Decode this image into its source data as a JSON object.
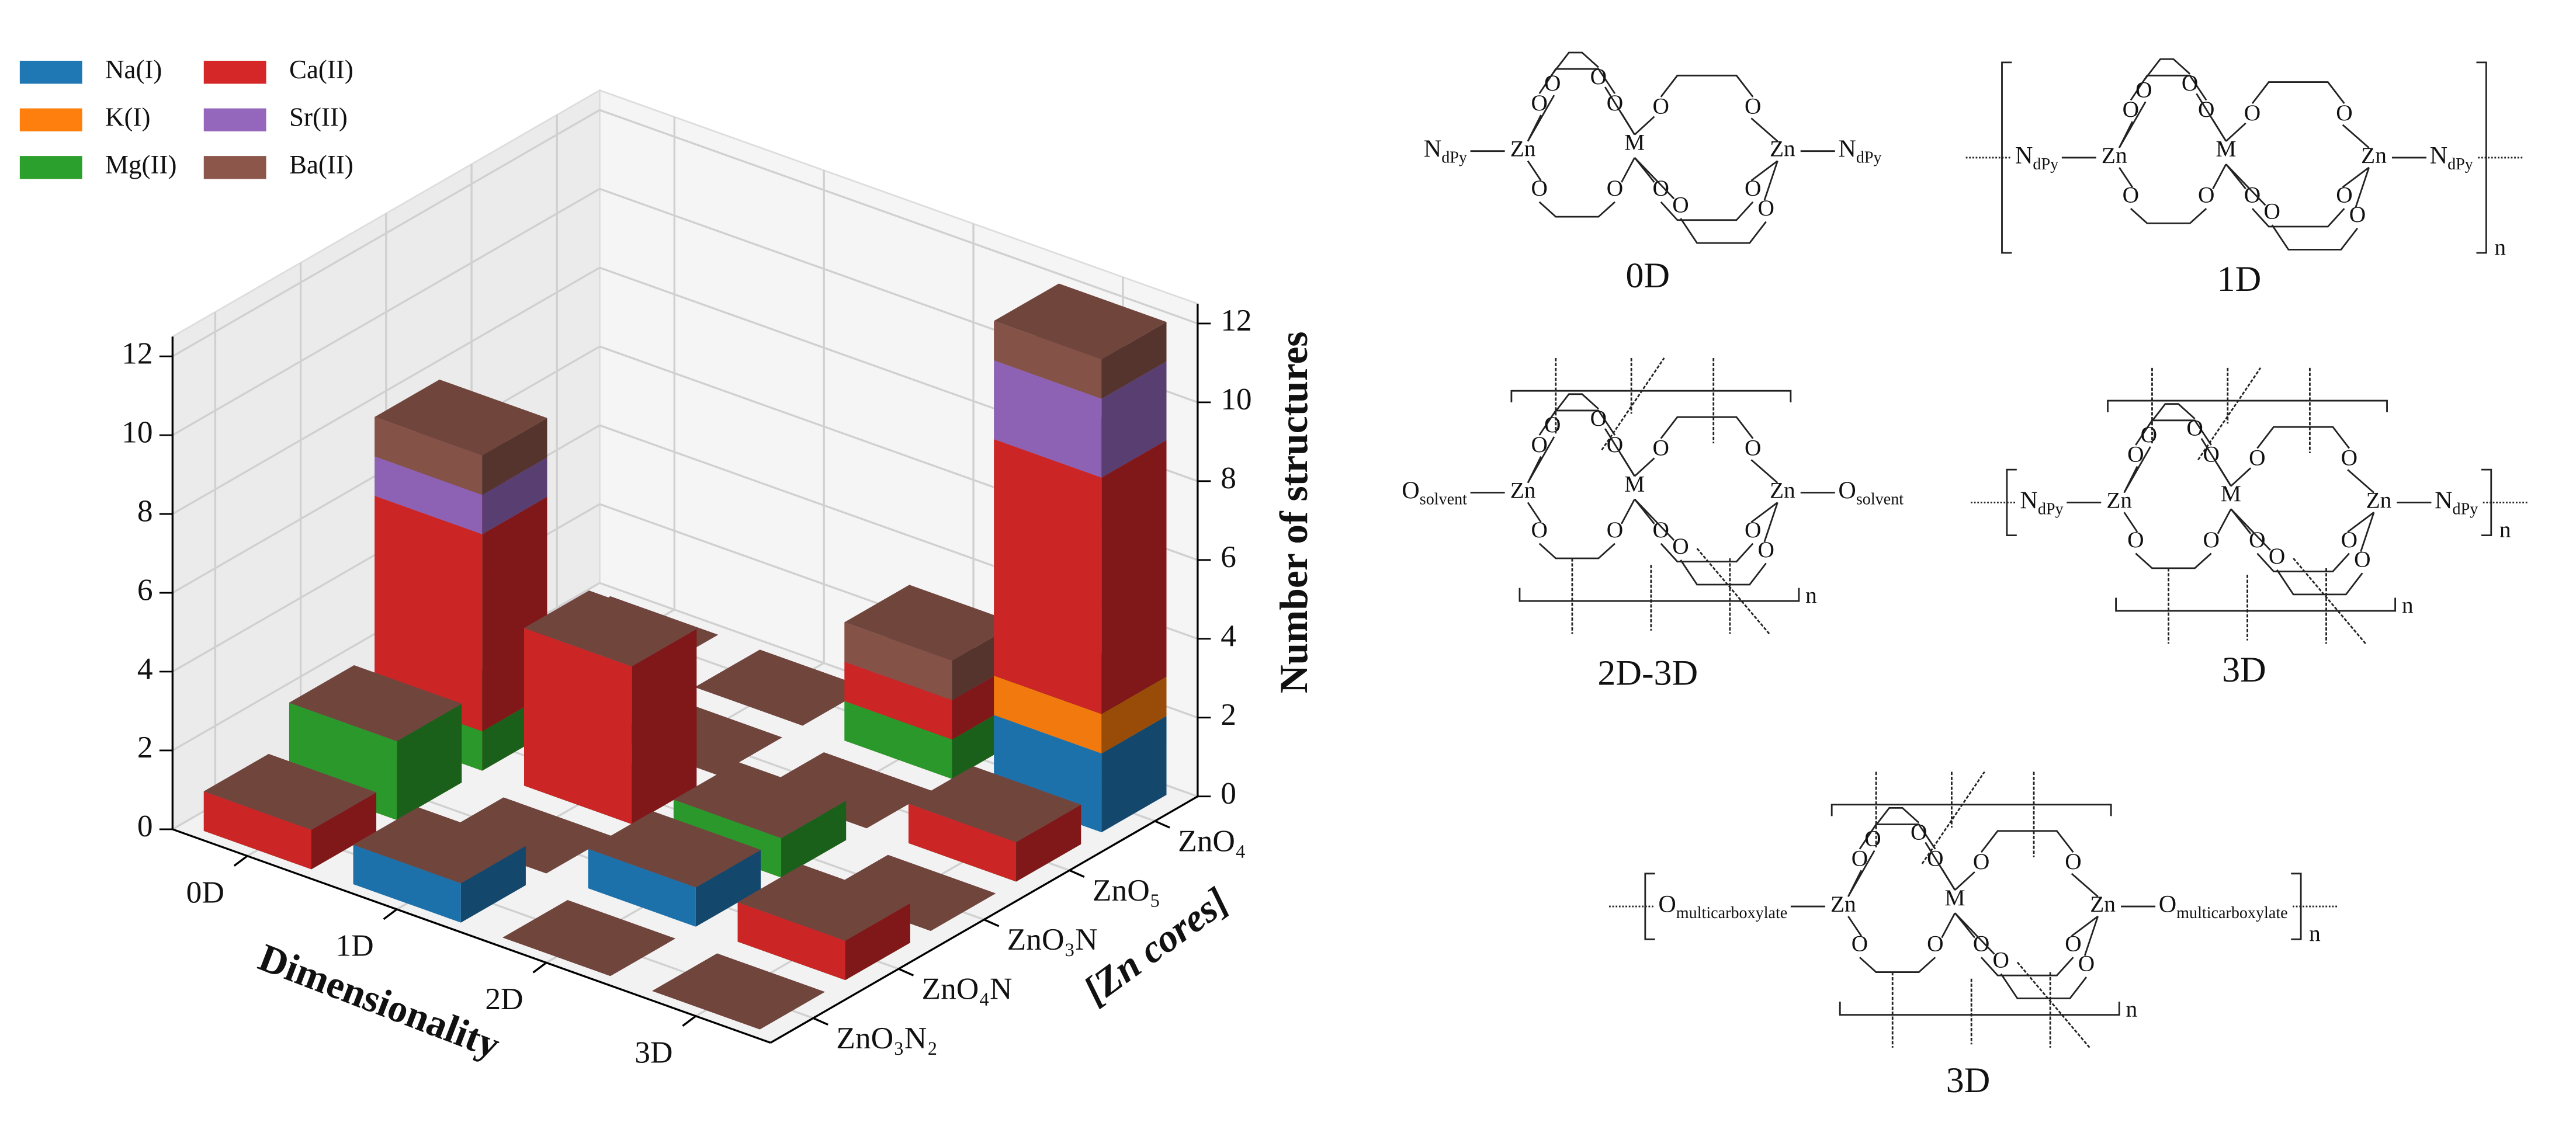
{
  "chart_data": {
    "type": "bar3d",
    "x_label": "Dimensionality",
    "y_label": "[Zn cores]",
    "z_label": "Number of structures",
    "dimensionality": [
      "0D",
      "1D",
      "2D",
      "3D"
    ],
    "zn_cores": [
      "ZnO₄",
      "ZnO₅",
      "ZnO₃N",
      "ZnO₄N",
      "ZnO₃N₂"
    ],
    "zlim": [
      0,
      12.5
    ],
    "zticks": [
      0,
      2,
      4,
      6,
      8,
      10,
      12
    ],
    "grid": true,
    "legend": "upper left",
    "series": [
      {
        "name": "Na(I)",
        "color": "#1f77b4",
        "values": [
          [
            0,
            0,
            0,
            0,
            0
          ],
          [
            0,
            0,
            0,
            0,
            1
          ],
          [
            0,
            0,
            0,
            1,
            0
          ],
          [
            2,
            0,
            0,
            0,
            0
          ]
        ]
      },
      {
        "name": "K(I)",
        "color": "#ff7f0e",
        "values": [
          [
            0,
            0,
            0,
            0,
            0
          ],
          [
            0,
            0,
            0,
            0,
            0
          ],
          [
            0,
            0,
            0,
            0,
            0
          ],
          [
            1,
            0,
            0,
            0,
            0
          ]
        ]
      },
      {
        "name": "Mg(II)",
        "color": "#2ca02c",
        "values": [
          [
            0,
            0,
            1,
            2,
            0
          ],
          [
            0,
            0,
            0,
            0,
            0
          ],
          [
            1,
            0,
            1,
            0,
            0
          ],
          [
            0,
            0,
            0,
            0,
            0
          ]
        ]
      },
      {
        "name": "Ca(II)",
        "color": "#d62728",
        "values": [
          [
            0,
            0,
            5,
            0,
            1
          ],
          [
            0,
            0,
            4,
            0,
            0
          ],
          [
            1,
            0,
            0,
            0,
            0
          ],
          [
            6,
            1,
            0,
            1,
            0
          ]
        ]
      },
      {
        "name": "Sr(II)",
        "color": "#9467bd",
        "values": [
          [
            0,
            0,
            1,
            0,
            0
          ],
          [
            0,
            0,
            0,
            0,
            0
          ],
          [
            0,
            0,
            0,
            0,
            0
          ],
          [
            2,
            0,
            0,
            0,
            0
          ]
        ]
      },
      {
        "name": "Ba(II)",
        "color": "#8c564b",
        "values": [
          [
            0,
            0,
            1,
            0,
            0
          ],
          [
            0,
            0,
            0,
            0,
            0
          ],
          [
            1,
            0,
            0,
            0,
            0
          ],
          [
            1,
            0,
            0,
            0,
            0
          ]
        ]
      }
    ]
  },
  "structures": {
    "atoms": {
      "zinc": "Zn",
      "metal": "M",
      "oxygen": "O",
      "repeat": "n"
    },
    "panels": [
      {
        "caption": "0D",
        "ligand": [
          "N",
          "dPy"
        ],
        "polymer": false,
        "framework": false
      },
      {
        "caption": "1D",
        "ligand": [
          "N",
          "dPy"
        ],
        "polymer": true,
        "framework": false
      },
      {
        "caption": "2D-3D",
        "ligand": [
          "O",
          "solvent"
        ],
        "polymer": false,
        "framework": true
      },
      {
        "caption": "3D",
        "ligand": [
          "N",
          "dPy"
        ],
        "polymer": true,
        "framework": true
      },
      {
        "caption": "3D",
        "ligand": [
          "O",
          "multicarboxylate"
        ],
        "polymer": true,
        "framework": true
      }
    ]
  }
}
